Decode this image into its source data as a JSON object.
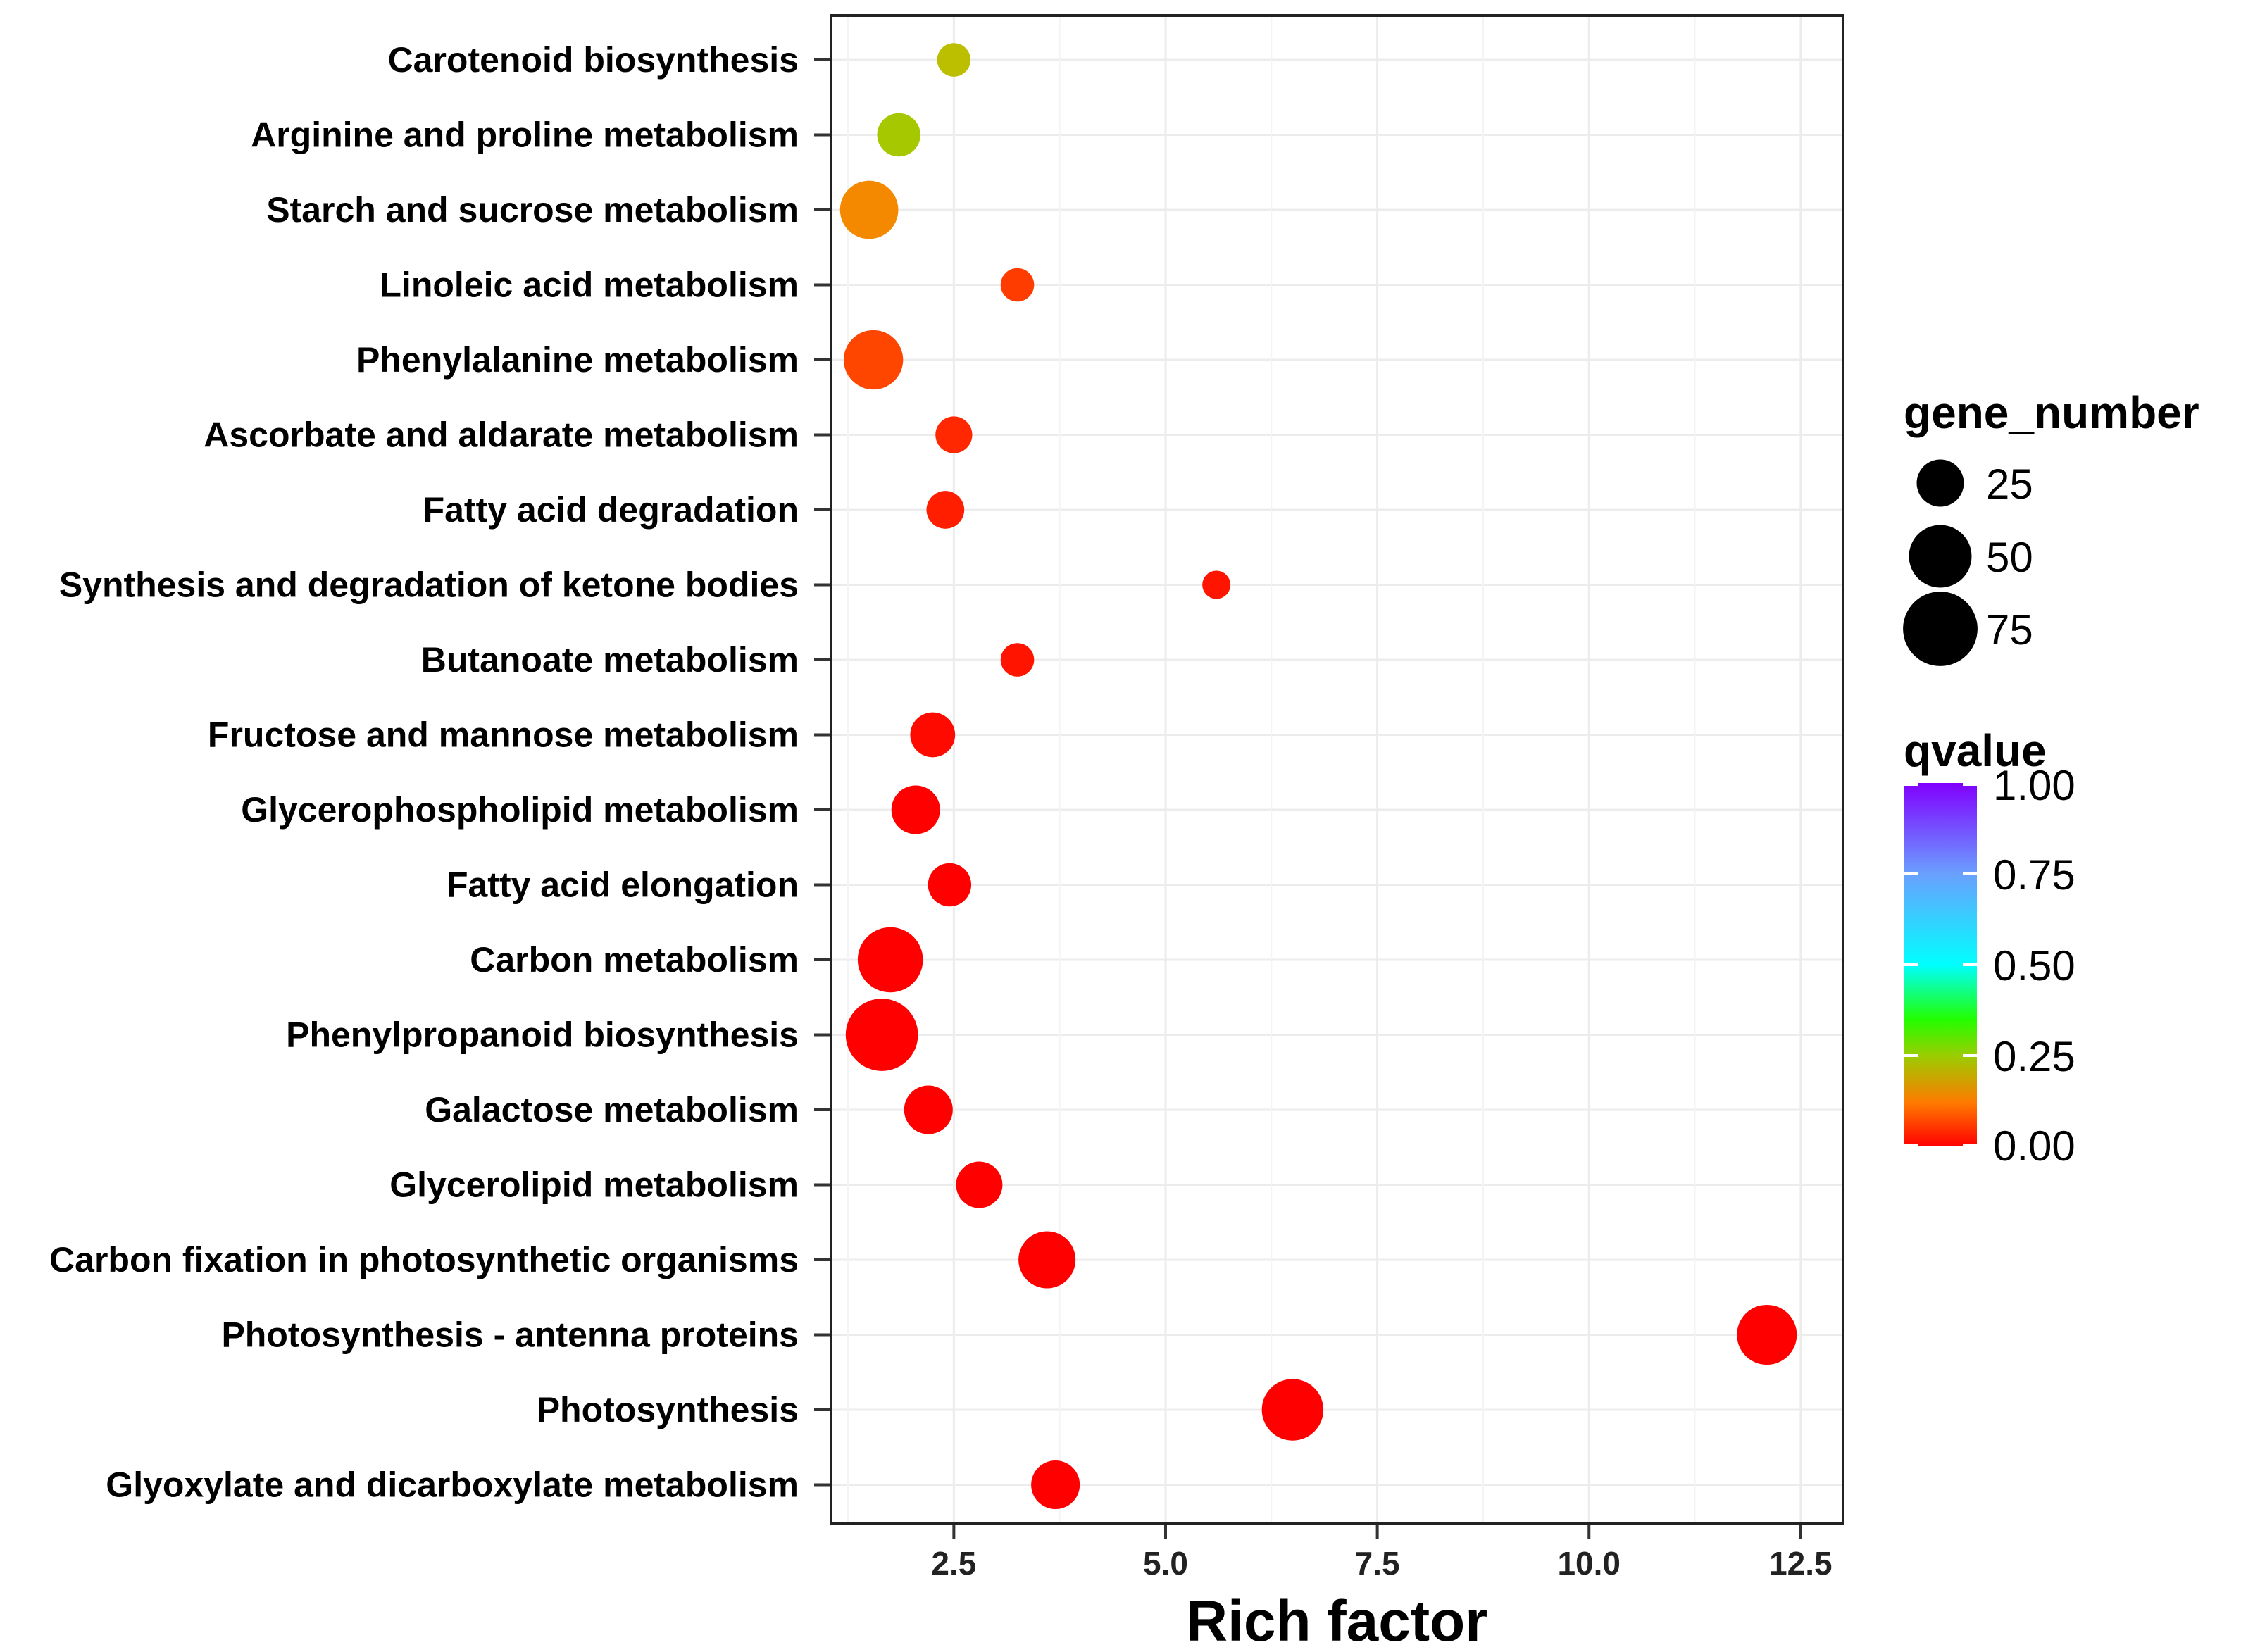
{
  "chart_data": {
    "type": "scatter",
    "title": "",
    "xlabel": "Rich factor",
    "ylabel": "",
    "xlim": [
      1.0,
      13.5
    ],
    "xticks": [
      2.5,
      5.0,
      7.5,
      10.0,
      12.5
    ],
    "xtick_labels": [
      "2.5",
      "5.0",
      "7.5",
      "10.0",
      "12.5"
    ],
    "grid": true,
    "categories": [
      "Carotenoid biosynthesis",
      "Arginine and proline metabolism",
      "Starch and sucrose metabolism",
      "Linoleic acid metabolism",
      "Phenylalanine metabolism",
      "Ascorbate and aldarate metabolism",
      "Fatty acid degradation",
      "Synthesis and degradation of ketone bodies",
      "Butanoate metabolism",
      "Fructose and mannose metabolism",
      "Glycerophospholipid metabolism",
      "Fatty acid elongation",
      "Carbon metabolism",
      "Phenylpropanoid biosynthesis",
      "Galactose metabolism",
      "Glycerolipid metabolism",
      "Carbon fixation in photosynthetic organisms",
      "Photosynthesis - antenna proteins",
      "Photosynthesis",
      "Glyoxylate and dicarboxylate metabolism"
    ],
    "rich_factor": [
      2.5,
      1.85,
      1.5,
      3.25,
      1.55,
      2.5,
      2.4,
      5.6,
      3.25,
      2.25,
      2.05,
      2.45,
      1.75,
      1.65,
      2.2,
      2.8,
      3.6,
      12.1,
      6.5,
      3.7
    ],
    "gene_number": [
      10,
      20,
      42,
      10,
      44,
      13,
      14,
      6,
      10,
      22,
      27,
      20,
      55,
      70,
      27,
      24,
      40,
      45,
      48,
      27
    ],
    "qvalue": [
      0.22,
      0.24,
      0.14,
      0.06,
      0.07,
      0.04,
      0.03,
      0.02,
      0.02,
      0.01,
      0.0,
      0.0,
      0.0,
      0.0,
      0.0,
      0.0,
      0.0,
      0.0,
      0.0,
      0.0
    ],
    "size_legend": {
      "title": "gene_number",
      "values": [
        25,
        50,
        75
      ],
      "labels": [
        "25",
        "50",
        "75"
      ]
    },
    "color_legend": {
      "title": "qvalue",
      "range": [
        0.0,
        1.0
      ],
      "ticks": [
        "1.00",
        "0.75",
        "0.50",
        "0.25",
        "0.00"
      ],
      "colors": [
        "#8000ff",
        "#6aa6ff",
        "#00ffff",
        "#22ff00",
        "#ff9900",
        "#ff0000"
      ]
    }
  }
}
